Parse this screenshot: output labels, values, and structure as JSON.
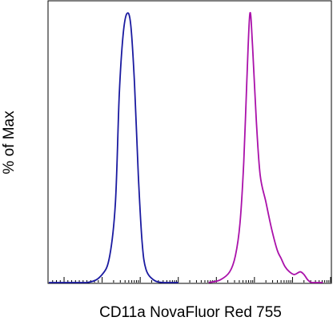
{
  "chart_data": {
    "type": "area",
    "title": "",
    "xlabel": "CD11a NovaFluor Red 755",
    "ylabel": "% of Max",
    "x_scale": "log (biexponential)",
    "x_tick_labels": [],
    "y_tick_labels": [],
    "ylim": [
      0,
      100
    ],
    "grid": false,
    "legend": "none",
    "series": [
      {
        "color": "#1a1aa0",
        "x": [
          -3,
          0.6,
          1.0,
          1.2,
          1.35,
          1.45,
          1.55,
          1.65,
          1.75,
          1.85,
          1.95,
          2.05,
          2.15,
          2.35,
          2.6,
          3.0
        ],
        "y": [
          0,
          0,
          3,
          10,
          30,
          70,
          92,
          100,
          96,
          74,
          40,
          15,
          5,
          1,
          0,
          0
        ]
      },
      {
        "color": "#aa11aa",
        "x": [
          3.8,
          4.1,
          4.35,
          4.5,
          4.62,
          4.72,
          4.8,
          4.88,
          4.95,
          5.05,
          5.15,
          5.3,
          5.45,
          5.6,
          5.7,
          5.8,
          5.92,
          6.05,
          6.2,
          6.3,
          6.4,
          6.5,
          6.65,
          6.8
        ],
        "y": [
          0,
          1,
          4,
          10,
          22,
          45,
          75,
          100,
          88,
          60,
          40,
          30,
          20,
          12,
          9,
          6,
          4,
          3,
          4,
          3,
          1,
          0,
          0,
          0
        ]
      }
    ]
  }
}
